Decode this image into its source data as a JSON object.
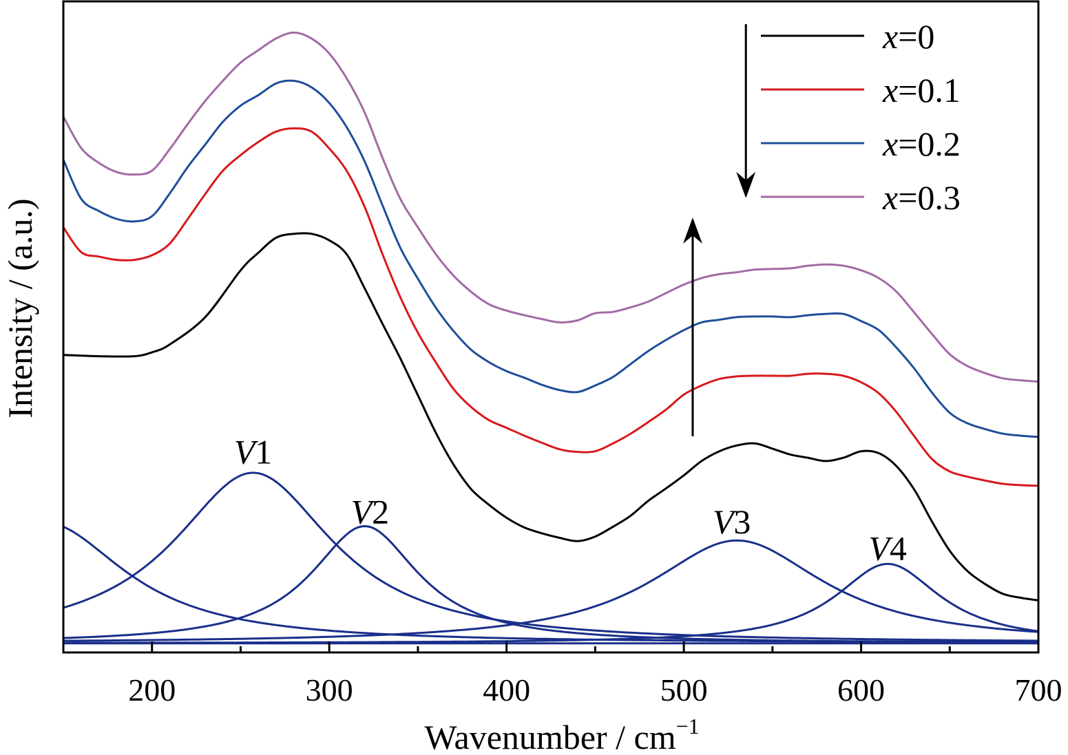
{
  "chart_data": {
    "type": "line",
    "xlabel": "Wavenumber / cm",
    "xlabel_sup": "−1",
    "ylabel": "Intensity / (a.u.)",
    "xlim": [
      150,
      700
    ],
    "ylim": [
      0,
      1
    ],
    "x_ticks": [
      "200",
      "300",
      "400",
      "500",
      "600",
      "700"
    ],
    "grid": false,
    "legend": "top-right",
    "colors": {
      "black": "#000000",
      "red": "#d7191c",
      "blue": "#1f4e9a",
      "purple": "#a26aa6",
      "fit": "#1a2f8a"
    },
    "series": [
      {
        "name": "x=0",
        "var": "x",
        "value": "=0",
        "color": "#000000",
        "x": [
          150,
          170,
          190,
          200,
          210,
          230,
          250,
          260,
          270,
          280,
          290,
          300,
          310,
          320,
          330,
          340,
          350,
          360,
          370,
          380,
          390,
          400,
          410,
          420,
          430,
          440,
          450,
          460,
          470,
          480,
          490,
          500,
          510,
          520,
          530,
          540,
          550,
          560,
          570,
          580,
          590,
          600,
          610,
          620,
          630,
          640,
          650,
          660,
          670,
          680,
          690,
          700
        ],
        "y": [
          0.457,
          0.455,
          0.455,
          0.461,
          0.473,
          0.515,
          0.587,
          0.614,
          0.637,
          0.643,
          0.643,
          0.633,
          0.611,
          0.559,
          0.505,
          0.452,
          0.395,
          0.338,
          0.289,
          0.251,
          0.227,
          0.207,
          0.192,
          0.183,
          0.176,
          0.171,
          0.178,
          0.193,
          0.21,
          0.233,
          0.252,
          0.272,
          0.294,
          0.309,
          0.318,
          0.321,
          0.313,
          0.304,
          0.299,
          0.294,
          0.299,
          0.309,
          0.306,
          0.286,
          0.25,
          0.201,
          0.156,
          0.125,
          0.105,
          0.09,
          0.084,
          0.08
        ]
      },
      {
        "name": "x=0.1",
        "var": "x",
        "value": "=0.1",
        "color": "#d7191c",
        "x": [
          150,
          160,
          170,
          180,
          190,
          200,
          210,
          220,
          230,
          240,
          250,
          260,
          270,
          280,
          290,
          300,
          310,
          320,
          330,
          340,
          350,
          360,
          370,
          380,
          390,
          400,
          410,
          420,
          430,
          440,
          450,
          460,
          470,
          480,
          490,
          500,
          510,
          520,
          530,
          540,
          550,
          560,
          570,
          580,
          590,
          600,
          610,
          620,
          630,
          640,
          650,
          660,
          670,
          680,
          690,
          700
        ],
        "y": [
          0.653,
          0.615,
          0.608,
          0.603,
          0.603,
          0.61,
          0.628,
          0.665,
          0.704,
          0.74,
          0.764,
          0.784,
          0.8,
          0.805,
          0.8,
          0.774,
          0.739,
          0.684,
          0.612,
          0.546,
          0.491,
          0.446,
          0.405,
          0.377,
          0.357,
          0.345,
          0.333,
          0.322,
          0.312,
          0.308,
          0.309,
          0.321,
          0.336,
          0.354,
          0.373,
          0.396,
          0.41,
          0.42,
          0.424,
          0.425,
          0.425,
          0.425,
          0.428,
          0.428,
          0.425,
          0.415,
          0.398,
          0.369,
          0.332,
          0.297,
          0.278,
          0.27,
          0.264,
          0.259,
          0.257,
          0.256
        ]
      },
      {
        "name": "x=0.2",
        "var": "x",
        "value": "=0.2",
        "color": "#1f4e9a",
        "x": [
          150,
          160,
          170,
          180,
          190,
          200,
          210,
          220,
          230,
          240,
          250,
          260,
          270,
          280,
          290,
          300,
          310,
          320,
          330,
          340,
          350,
          360,
          370,
          380,
          390,
          400,
          410,
          420,
          430,
          440,
          450,
          460,
          470,
          480,
          490,
          500,
          510,
          520,
          530,
          540,
          550,
          560,
          570,
          580,
          590,
          600,
          610,
          620,
          630,
          640,
          650,
          660,
          670,
          680,
          690,
          700
        ],
        "y": [
          0.757,
          0.697,
          0.678,
          0.666,
          0.662,
          0.67,
          0.705,
          0.745,
          0.78,
          0.815,
          0.84,
          0.856,
          0.874,
          0.878,
          0.868,
          0.844,
          0.806,
          0.754,
          0.687,
          0.622,
          0.574,
          0.53,
          0.494,
          0.465,
          0.446,
          0.432,
          0.422,
          0.411,
          0.403,
          0.4,
          0.41,
          0.423,
          0.443,
          0.463,
          0.48,
          0.495,
          0.507,
          0.511,
          0.515,
          0.516,
          0.516,
          0.515,
          0.518,
          0.52,
          0.52,
          0.509,
          0.495,
          0.468,
          0.436,
          0.399,
          0.368,
          0.352,
          0.343,
          0.336,
          0.333,
          0.331
        ]
      },
      {
        "name": "x=0.3",
        "var": "x",
        "value": "=0.3",
        "color": "#a26aa6",
        "x": [
          150,
          160,
          170,
          180,
          190,
          200,
          210,
          220,
          230,
          240,
          250,
          260,
          270,
          280,
          290,
          300,
          310,
          320,
          330,
          340,
          350,
          360,
          370,
          380,
          390,
          400,
          410,
          420,
          430,
          440,
          450,
          460,
          470,
          480,
          490,
          500,
          510,
          520,
          530,
          540,
          550,
          560,
          570,
          580,
          590,
          600,
          610,
          620,
          630,
          640,
          650,
          660,
          670,
          680,
          690,
          700
        ],
        "y": [
          0.823,
          0.775,
          0.752,
          0.738,
          0.734,
          0.74,
          0.773,
          0.811,
          0.847,
          0.878,
          0.906,
          0.925,
          0.943,
          0.952,
          0.943,
          0.92,
          0.881,
          0.829,
          0.76,
          0.697,
          0.653,
          0.612,
          0.579,
          0.554,
          0.535,
          0.525,
          0.518,
          0.512,
          0.507,
          0.51,
          0.521,
          0.523,
          0.53,
          0.539,
          0.552,
          0.565,
          0.575,
          0.581,
          0.584,
          0.588,
          0.589,
          0.59,
          0.594,
          0.596,
          0.594,
          0.587,
          0.575,
          0.554,
          0.522,
          0.489,
          0.458,
          0.44,
          0.429,
          0.421,
          0.418,
          0.416
        ]
      }
    ],
    "fit_components": [
      {
        "label": "V",
        "num": "1",
        "center": 257,
        "height": 0.262,
        "width": 55,
        "label_x": 257,
        "label_y": 0.29
      },
      {
        "label": "V",
        "num": "2",
        "center": 320,
        "height": 0.18,
        "width": 37,
        "label_x": 323,
        "label_y": 0.198
      },
      {
        "label": "V",
        "num": "3",
        "center": 530,
        "height": 0.158,
        "width": 60,
        "label_x": 527,
        "label_y": 0.183
      },
      {
        "label": "V",
        "num": "4",
        "center": 615,
        "height": 0.122,
        "width": 36,
        "label_x": 615,
        "label_y": 0.142
      },
      {
        "label": "",
        "num": "",
        "center": 140,
        "height": 0.185,
        "width": 55,
        "label_x": null,
        "label_y": null
      }
    ],
    "fit_baseline_y": 0.014,
    "arrows": [
      {
        "direction": "down",
        "x": 535,
        "y_from": 0.965,
        "y_to": 0.698
      },
      {
        "direction": "up",
        "x": 505,
        "y_from": 0.332,
        "y_to": 0.668
      }
    ]
  }
}
